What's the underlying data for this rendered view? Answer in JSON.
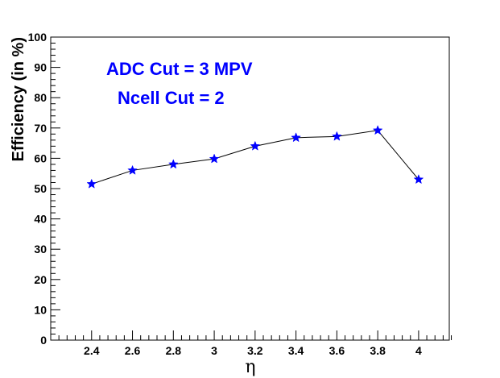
{
  "chart_data": {
    "type": "line",
    "title": "",
    "xlabel": "η",
    "ylabel": "Efficiency (in %)",
    "xlim": [
      2.2,
      4.15
    ],
    "ylim": [
      0,
      100
    ],
    "x_ticks": [
      2.4,
      2.6,
      2.8,
      3,
      3.2,
      3.4,
      3.6,
      3.8,
      4
    ],
    "y_ticks": [
      0,
      10,
      20,
      30,
      40,
      50,
      60,
      70,
      80,
      90,
      100
    ],
    "grid": false,
    "legend": "none",
    "annotations": [
      "ADC Cut = 3 MPV",
      "Ncell Cut = 2"
    ],
    "series": [
      {
        "x": [
          2.4,
          2.6,
          2.8,
          3.0,
          3.2,
          3.4,
          3.6,
          3.8,
          4.0
        ],
        "y": [
          51.5,
          56.0,
          58.0,
          59.8,
          64.0,
          66.8,
          67.2,
          69.2,
          53.0
        ],
        "line_color": "#000000",
        "marker_color": "#0000ff",
        "marker": "star"
      }
    ]
  }
}
